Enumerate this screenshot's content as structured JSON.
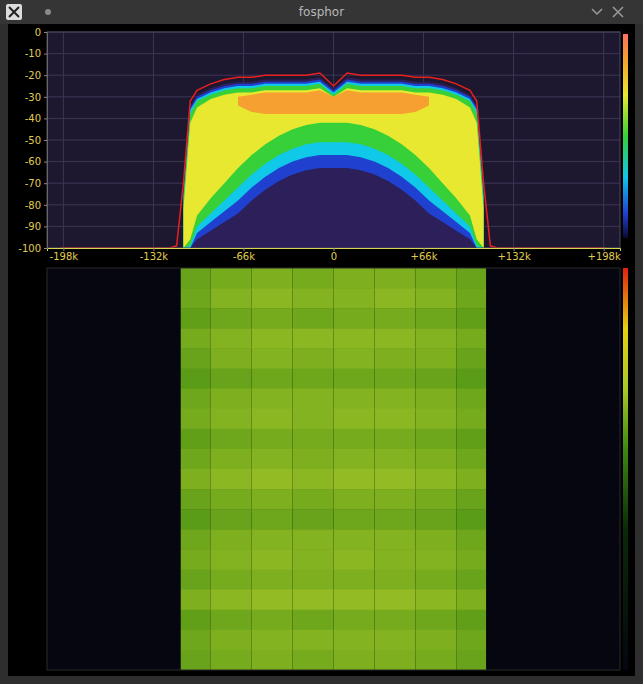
{
  "chart_data": [
    {
      "type": "area",
      "title": "fosphor",
      "x": [
        -200000,
        -180000,
        -160000,
        -140000,
        -120000,
        -115000,
        -110000,
        -105000,
        -100000,
        -90000,
        -80000,
        -70000,
        -60000,
        -50000,
        -40000,
        -30000,
        -20000,
        -10000,
        0,
        10000,
        20000,
        30000,
        40000,
        50000,
        60000,
        70000,
        80000,
        90000,
        100000,
        105000,
        110000,
        115000,
        120000,
        140000,
        160000,
        180000,
        200000
      ],
      "xlim": [
        -210000,
        210000
      ],
      "xticks": [
        {
          "value": -198000,
          "label": "-198k"
        },
        {
          "value": -132000,
          "label": "-132k"
        },
        {
          "value": -66000,
          "label": "-66k"
        },
        0,
        {
          "value": 66000,
          "label": "+66k"
        },
        {
          "value": 132000,
          "label": "+132k"
        },
        {
          "value": 198000,
          "label": "+198k"
        }
      ],
      "ylim": [
        -100,
        0
      ],
      "yticks": [
        0,
        -10,
        -20,
        -30,
        -40,
        -50,
        -60,
        -70,
        -80,
        -90,
        -100
      ],
      "grid": true,
      "series": [
        {
          "type": "area",
          "color": "#2c1f5a",
          "values": [
            null,
            null,
            null,
            null,
            null,
            null,
            -72,
            -34,
            -29,
            -26,
            -24,
            -23,
            -23,
            -22,
            -22,
            -22,
            -22,
            -21,
            -26,
            -21,
            -22,
            -22,
            -22,
            -22,
            -23,
            -23,
            -24,
            -26,
            -29,
            -34,
            -72,
            null,
            null,
            null,
            null,
            null,
            null
          ],
          "lower": [
            null,
            null,
            null,
            null,
            null,
            null,
            -100,
            -100,
            -100,
            -100,
            -100,
            -100,
            -100,
            -100,
            -100,
            -100,
            -100,
            -100,
            -100,
            -100,
            -100,
            -100,
            -100,
            -100,
            -100,
            -100,
            -100,
            -100,
            -100,
            -100,
            -100,
            null,
            null,
            null,
            null,
            null,
            null
          ]
        },
        {
          "type": "area",
          "color": "#2040d0",
          "values": [
            null,
            null,
            null,
            null,
            null,
            null,
            -74,
            -35,
            -30,
            -27,
            -25,
            -24,
            -24,
            -23,
            -23,
            -23,
            -23,
            -22,
            -27,
            -22,
            -23,
            -23,
            -23,
            -23,
            -24,
            -24,
            -25,
            -27,
            -30,
            -35,
            -74,
            null,
            null,
            null,
            null,
            null,
            null
          ],
          "lower": [
            null,
            null,
            null,
            null,
            null,
            null,
            -100,
            -100,
            -96,
            -92,
            -88,
            -84,
            -78,
            -73,
            -69,
            -66,
            -64,
            -63,
            -63,
            -63,
            -64,
            -66,
            -69,
            -73,
            -78,
            -84,
            -88,
            -92,
            -96,
            -100,
            -100,
            null,
            null,
            null,
            null,
            null,
            null
          ]
        },
        {
          "type": "area",
          "color": "#10c8e8",
          "values": [
            null,
            null,
            null,
            null,
            null,
            null,
            -76,
            -36,
            -31,
            -28,
            -26,
            -25,
            -25,
            -24,
            -24,
            -24,
            -24,
            -23,
            -28,
            -23,
            -24,
            -24,
            -24,
            -24,
            -25,
            -25,
            -26,
            -28,
            -31,
            -36,
            -76,
            null,
            null,
            null,
            null,
            null,
            null
          ],
          "lower": [
            null,
            null,
            null,
            null,
            null,
            null,
            -100,
            -100,
            -93,
            -88,
            -83,
            -78,
            -72,
            -67,
            -63,
            -60,
            -58,
            -57,
            -57,
            -57,
            -58,
            -60,
            -63,
            -67,
            -72,
            -78,
            -83,
            -88,
            -93,
            -100,
            -100,
            null,
            null,
            null,
            null,
            null,
            null
          ]
        },
        {
          "type": "area",
          "color": "#38d038",
          "values": [
            null,
            null,
            null,
            null,
            null,
            null,
            -78,
            -38,
            -32,
            -29,
            -27,
            -26,
            -26,
            -25,
            -25,
            -25,
            -25,
            -24,
            -29,
            -24,
            -25,
            -25,
            -25,
            -25,
            -26,
            -26,
            -27,
            -29,
            -32,
            -38,
            -78,
            null,
            null,
            null,
            null,
            null,
            null
          ],
          "lower": [
            null,
            null,
            null,
            null,
            null,
            null,
            -100,
            -99,
            -90,
            -84,
            -78,
            -72,
            -66,
            -61,
            -57,
            -54,
            -52,
            -51,
            -51,
            -51,
            -52,
            -54,
            -57,
            -61,
            -66,
            -72,
            -78,
            -84,
            -90,
            -99,
            -100,
            null,
            null,
            null,
            null,
            null,
            null
          ]
        },
        {
          "type": "area",
          "color": "#e8e830",
          "values": [
            null,
            null,
            null,
            null,
            null,
            null,
            -82,
            -42,
            -35,
            -31,
            -29,
            -28,
            -28,
            -27,
            -27,
            -27,
            -27,
            -26,
            -30,
            -26,
            -27,
            -27,
            -27,
            -27,
            -28,
            -28,
            -29,
            -31,
            -35,
            -42,
            -82,
            null,
            null,
            null,
            null,
            null,
            null
          ],
          "lower": [
            null,
            null,
            null,
            null,
            null,
            null,
            -100,
            -96,
            -85,
            -77,
            -70,
            -63,
            -57,
            -52,
            -48,
            -45,
            -43,
            -42,
            -42,
            -42,
            -43,
            -45,
            -48,
            -52,
            -57,
            -63,
            -70,
            -77,
            -85,
            -96,
            -100,
            null,
            null,
            null,
            null,
            null,
            null
          ]
        },
        {
          "type": "area",
          "color": "#f5a030",
          "values": [
            null,
            null,
            null,
            null,
            null,
            null,
            null,
            null,
            null,
            null,
            null,
            -30,
            -29,
            -28,
            -28,
            -28,
            -28,
            -27,
            -30,
            -27,
            -28,
            -28,
            -28,
            -28,
            -29,
            -30,
            null,
            null,
            null,
            null,
            null,
            null,
            null,
            null,
            null,
            null,
            null
          ],
          "lower": [
            null,
            null,
            null,
            null,
            null,
            null,
            null,
            null,
            null,
            null,
            null,
            -34,
            -37,
            -38,
            -38,
            -38,
            -38,
            -38,
            -38,
            -38,
            -38,
            -38,
            -38,
            -38,
            -37,
            -34,
            null,
            null,
            null,
            null,
            null,
            null,
            null,
            null,
            null,
            null,
            null
          ]
        },
        {
          "type": "line",
          "color": "#e8201e",
          "values": [
            -100,
            -100,
            -100,
            -100,
            -100,
            -99,
            -70,
            -32,
            -27,
            -24,
            -22,
            -21,
            -21,
            -20,
            -20,
            -20,
            -20,
            -19,
            -25,
            -19,
            -20,
            -20,
            -20,
            -20,
            -21,
            -21,
            -22,
            -24,
            -27,
            -32,
            -70,
            -99,
            -100,
            -100,
            -100,
            -100,
            -100
          ]
        }
      ]
    },
    {
      "type": "heatmap",
      "xlim": [
        -210000,
        210000
      ],
      "x_edges": [
        -210000,
        -112000,
        -90000,
        -60000,
        -30000,
        0,
        30000,
        60000,
        90000,
        112000,
        210000
      ],
      "zlim": [
        -100,
        0
      ],
      "tick_labels": false,
      "cells": [
        [
          -100,
          -39,
          -37,
          -36,
          -37,
          -36,
          -36,
          -37,
          -39,
          -100
        ],
        [
          -100,
          -38,
          -35,
          -34,
          -35,
          -35,
          -34,
          -35,
          -38,
          -100
        ],
        [
          -100,
          -40,
          -38,
          -37,
          -38,
          -37,
          -37,
          -38,
          -40,
          -100
        ],
        [
          -100,
          -37,
          -35,
          -34,
          -34,
          -34,
          -34,
          -35,
          -37,
          -100
        ],
        [
          -100,
          -39,
          -36,
          -35,
          -36,
          -35,
          -36,
          -36,
          -39,
          -100
        ],
        [
          -100,
          -41,
          -39,
          -38,
          -38,
          -38,
          -38,
          -39,
          -41,
          -100
        ],
        [
          -100,
          -38,
          -36,
          -35,
          -35,
          -35,
          -35,
          -36,
          -38,
          -100
        ],
        [
          -100,
          -37,
          -35,
          -34,
          -35,
          -34,
          -34,
          -35,
          -37,
          -100
        ],
        [
          -100,
          -40,
          -38,
          -37,
          -37,
          -37,
          -37,
          -38,
          -40,
          -100
        ],
        [
          -100,
          -38,
          -36,
          -35,
          -36,
          -35,
          -35,
          -36,
          -38,
          -100
        ],
        [
          -100,
          -36,
          -34,
          -33,
          -34,
          -33,
          -33,
          -34,
          -36,
          -100
        ],
        [
          -100,
          -39,
          -37,
          -36,
          -37,
          -36,
          -36,
          -37,
          -39,
          -100
        ],
        [
          -100,
          -41,
          -39,
          -38,
          -39,
          -38,
          -38,
          -39,
          -41,
          -100
        ],
        [
          -100,
          -38,
          -36,
          -35,
          -35,
          -35,
          -35,
          -36,
          -38,
          -100
        ],
        [
          -100,
          -37,
          -35,
          -34,
          -35,
          -34,
          -35,
          -35,
          -37,
          -100
        ],
        [
          -100,
          -39,
          -37,
          -36,
          -36,
          -36,
          -36,
          -37,
          -39,
          -100
        ],
        [
          -100,
          -36,
          -34,
          -33,
          -33,
          -33,
          -33,
          -34,
          -36,
          -100
        ],
        [
          -100,
          -40,
          -38,
          -37,
          -38,
          -37,
          -37,
          -38,
          -40,
          -100
        ],
        [
          -100,
          -38,
          -36,
          -35,
          -35,
          -35,
          -35,
          -36,
          -38,
          -100
        ],
        [
          -100,
          -39,
          -37,
          -36,
          -37,
          -36,
          -36,
          -37,
          -39,
          -100
        ]
      ]
    }
  ]
}
